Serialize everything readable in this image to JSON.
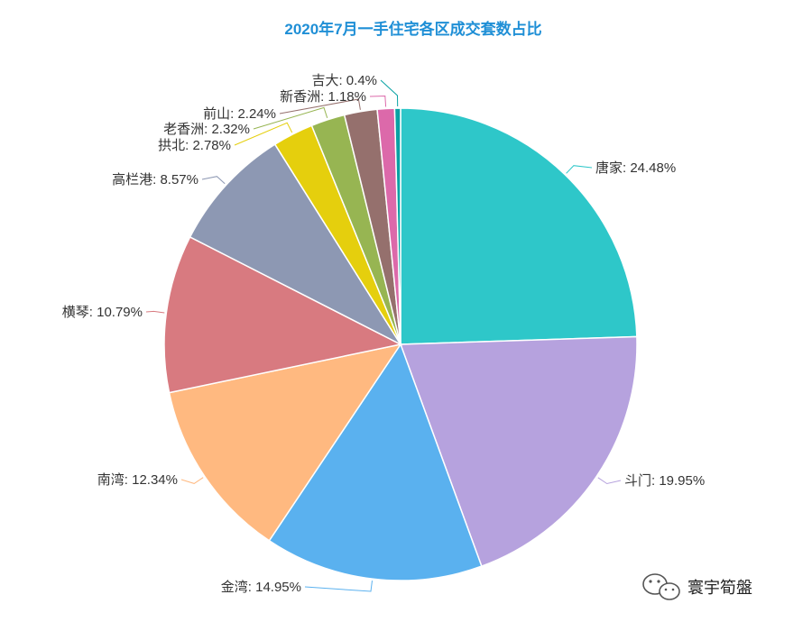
{
  "chart_data": {
    "type": "pie",
    "title": "2020年7月一手住宅各区成交套数占比",
    "start": "top",
    "direction": "clockwise",
    "slices": [
      {
        "name": "唐家",
        "value": 24.48,
        "label": "唐家: 24.48%",
        "color": "#2ec7c9"
      },
      {
        "name": "斗门",
        "value": 19.95,
        "label": "斗门: 19.95%",
        "color": "#b6a2de"
      },
      {
        "name": "金湾",
        "value": 14.95,
        "label": "金湾: 14.95%",
        "color": "#5ab1ef"
      },
      {
        "name": "南湾",
        "value": 12.34,
        "label": "南湾: 12.34%",
        "color": "#ffb980"
      },
      {
        "name": "横琴",
        "value": 10.79,
        "label": "横琴: 10.79%",
        "color": "#d87a80"
      },
      {
        "name": "高栏港",
        "value": 8.57,
        "label": "高栏港: 8.57%",
        "color": "#8d98b3"
      },
      {
        "name": "拱北",
        "value": 2.78,
        "label": "拱北: 2.78%",
        "color": "#e5cf0d"
      },
      {
        "name": "老香洲",
        "value": 2.32,
        "label": "老香洲: 2.32%",
        "color": "#97b552"
      },
      {
        "name": "前山",
        "value": 2.24,
        "label": "前山: 2.24%",
        "color": "#95706d"
      },
      {
        "name": "新香洲",
        "value": 1.18,
        "label": "新香洲: 1.18%",
        "color": "#dc69aa"
      },
      {
        "name": "吉大",
        "value": 0.4,
        "label": "吉大: 0.4%",
        "color": "#07a2a4"
      }
    ]
  },
  "watermark": {
    "text": "寰宇筍盤",
    "icon": "wechat-icon"
  }
}
